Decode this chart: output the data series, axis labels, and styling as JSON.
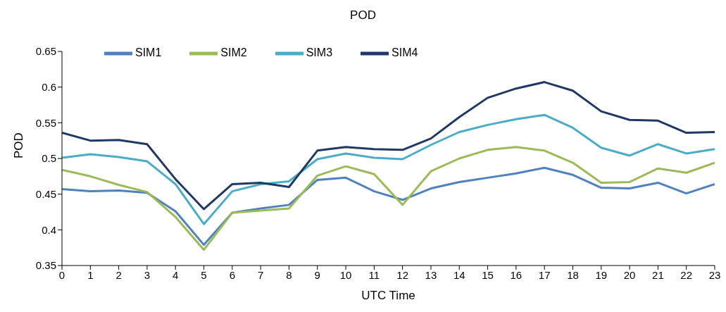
{
  "chart_data": {
    "type": "line",
    "title": "POD",
    "xlabel": "UTC Time",
    "ylabel": "POD",
    "x": [
      0,
      1,
      2,
      3,
      4,
      5,
      6,
      7,
      8,
      9,
      10,
      11,
      12,
      13,
      14,
      15,
      16,
      17,
      18,
      19,
      20,
      21,
      22,
      23
    ],
    "xlim": [
      0,
      23
    ],
    "xticks": [
      0,
      1,
      2,
      3,
      4,
      5,
      6,
      7,
      8,
      9,
      10,
      11,
      12,
      13,
      14,
      15,
      16,
      17,
      18,
      19,
      20,
      21,
      22,
      23
    ],
    "ylim": [
      0.35,
      0.65
    ],
    "yticks": [
      0.35,
      0.4,
      0.45,
      0.5,
      0.55,
      0.6,
      0.65
    ],
    "grid": false,
    "legend": "top left",
    "marker": "none",
    "line_style": "solid",
    "series": [
      {
        "name": "SIM1",
        "color": "#4f81bd",
        "values": [
          0.457,
          0.454,
          0.455,
          0.452,
          0.426,
          0.379,
          0.424,
          0.43,
          0.435,
          0.47,
          0.473,
          0.454,
          0.442,
          0.458,
          0.467,
          0.473,
          0.479,
          0.487,
          0.477,
          0.459,
          0.458,
          0.466,
          0.451,
          0.464
        ]
      },
      {
        "name": "SIM2",
        "color": "#9bbb59",
        "values": [
          0.484,
          0.475,
          0.463,
          0.453,
          0.418,
          0.372,
          0.424,
          0.427,
          0.43,
          0.476,
          0.489,
          0.478,
          0.435,
          0.482,
          0.5,
          0.512,
          0.516,
          0.511,
          0.494,
          0.466,
          0.467,
          0.486,
          0.48,
          0.494
        ]
      },
      {
        "name": "SIM3",
        "color": "#4bacc6",
        "values": [
          0.501,
          0.506,
          0.502,
          0.496,
          0.464,
          0.408,
          0.454,
          0.464,
          0.468,
          0.499,
          0.507,
          0.501,
          0.499,
          0.519,
          0.537,
          0.547,
          0.555,
          0.561,
          0.543,
          0.515,
          0.504,
          0.52,
          0.507,
          0.513
        ]
      },
      {
        "name": "SIM4",
        "color": "#1f3864",
        "values": [
          0.536,
          0.525,
          0.526,
          0.52,
          0.471,
          0.429,
          0.464,
          0.466,
          0.46,
          0.511,
          0.516,
          0.513,
          0.512,
          0.528,
          0.558,
          0.585,
          0.598,
          0.607,
          0.595,
          0.566,
          0.554,
          0.553,
          0.536,
          0.537
        ]
      }
    ]
  }
}
